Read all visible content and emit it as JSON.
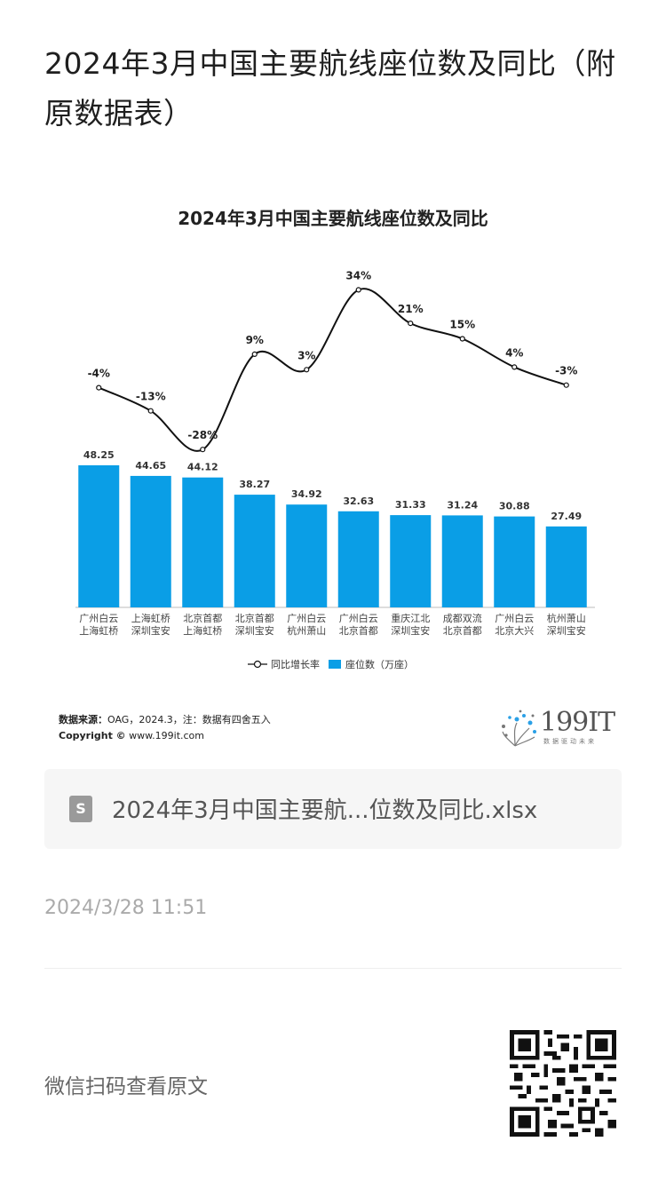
{
  "page": {
    "title": "2024年3月中国主要航线座位数及同比（附原数据表）",
    "timestamp": "2024/3/28 11:51",
    "qr_caption": "微信扫码查看原文"
  },
  "attachment": {
    "icon": "spreadsheet-file-icon",
    "icon_letter": "S",
    "file_name": "2024年3月中国主要航...位数及同比.xlsx"
  },
  "chart_data": {
    "type": "bar",
    "title": "2024年3月中国主要航线座位数及同比",
    "categories": [
      [
        "广州白云",
        "上海虹桥"
      ],
      [
        "上海虹桥",
        "深圳宝安"
      ],
      [
        "北京首都",
        "上海虹桥"
      ],
      [
        "北京首都",
        "深圳宝安"
      ],
      [
        "广州白云",
        "杭州萧山"
      ],
      [
        "广州白云",
        "北京首都"
      ],
      [
        "重庆江北",
        "深圳宝安"
      ],
      [
        "成都双流",
        "北京首都"
      ],
      [
        "广州白云",
        "北京大兴"
      ],
      [
        "杭州萧山",
        "深圳宝安"
      ]
    ],
    "series": [
      {
        "name": "座位数（万座）",
        "kind": "bar",
        "color": "#0a9ee6",
        "values": [
          48.25,
          44.65,
          44.12,
          38.27,
          34.92,
          32.63,
          31.33,
          31.24,
          30.88,
          27.49
        ],
        "labels": [
          "48.25",
          "44.65",
          "44.12",
          "38.27",
          "34.92",
          "32.63",
          "31.33",
          "31.24",
          "30.88",
          "27.49"
        ]
      },
      {
        "name": "同比增长率",
        "kind": "line",
        "color": "#111111",
        "values": [
          -4,
          -13,
          -28,
          9,
          3,
          34,
          21,
          15,
          4,
          -3
        ],
        "labels": [
          "-4%",
          "-13%",
          "-28%",
          "9%",
          "3%",
          "34%",
          "21%",
          "15%",
          "4%",
          "-3%"
        ]
      }
    ],
    "legend": [
      "同比增长率",
      "座位数（万座）"
    ],
    "legend_position": "bottom",
    "grid": false,
    "source_label": "数据来源：",
    "source_text": "OAG，2024.3，注：数据有四舍五入",
    "copyright_label": "Copyright ©",
    "copyright_text": "www.199it.com",
    "logo_text": "199IT",
    "logo_tagline": "数据驱动未来"
  }
}
